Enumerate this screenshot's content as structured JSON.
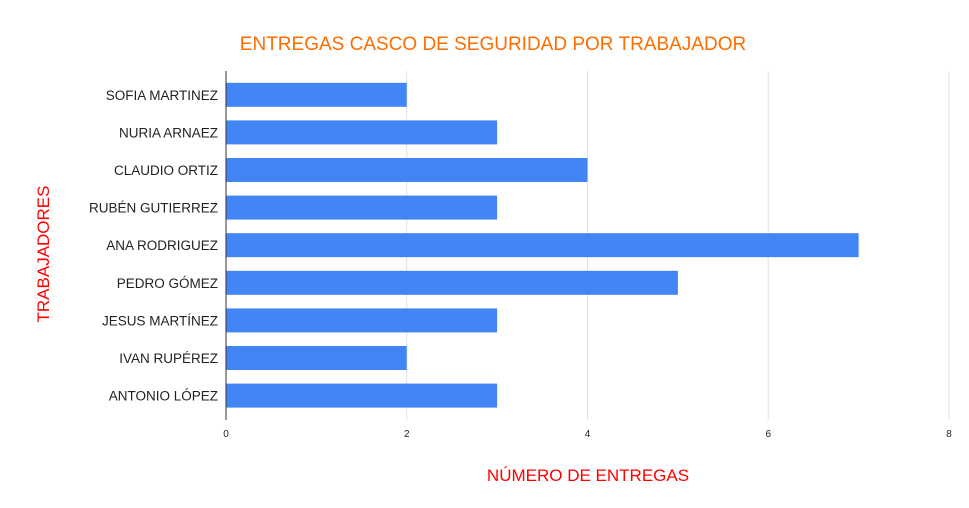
{
  "chart_data": {
    "type": "bar",
    "orientation": "horizontal",
    "title": "ENTREGAS CASCO DE SEGURIDAD POR TRABAJADOR",
    "xlabel": "NÚMERO DE ENTREGAS",
    "ylabel": "TRABAJADORES",
    "categories": [
      "SOFIA MARTINEZ",
      "NURIA ARNAEZ",
      "CLAUDIO ORTIZ",
      "RUBÉN GUTIERREZ",
      "ANA RODRIGUEZ",
      "PEDRO GÓMEZ",
      "JESUS MARTÍNEZ",
      "IVAN RUPÉREZ",
      "ANTONIO LÓPEZ"
    ],
    "values": [
      2,
      3,
      4,
      3,
      7,
      5,
      3,
      2,
      3
    ],
    "xlim": [
      0,
      8
    ],
    "xticks": [
      0,
      2,
      4,
      6,
      8
    ],
    "xtick_labels": [
      "0",
      "2",
      "4",
      "6",
      "8"
    ],
    "grid": true,
    "legend": "none",
    "colors": {
      "bar": "#4285f4",
      "title": "#ff6d01",
      "axis_title": "#ff0000",
      "grid": "#e0e0e0",
      "axis_line": "#333333"
    }
  }
}
